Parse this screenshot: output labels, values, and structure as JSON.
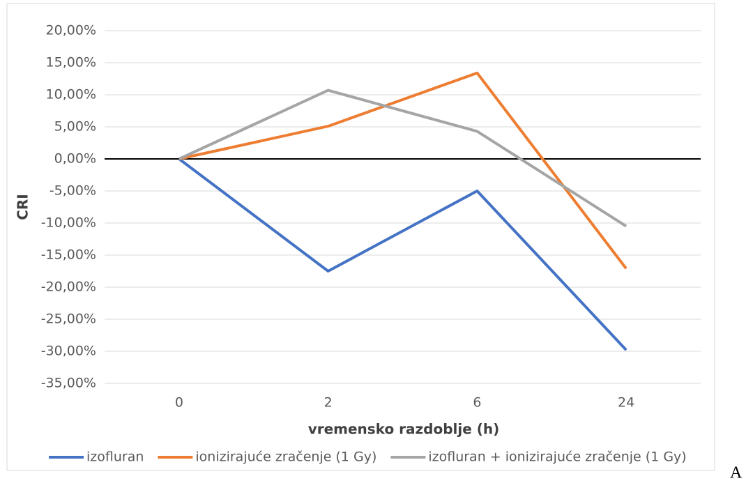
{
  "chart_data": {
    "type": "line",
    "categories": [
      "0",
      "2",
      "6",
      "24"
    ],
    "xlabel": "vremensko razdoblje (h)",
    "ylabel": "CRI",
    "series": [
      {
        "name": "izofluran",
        "color": "#4472c4",
        "values": [
          0,
          -17.5,
          -5,
          -29.8
        ]
      },
      {
        "name": "ionizirajuće zračenje (1 Gy)",
        "color": "#ed7d31",
        "values": [
          0,
          5.1,
          13.4,
          -17.1
        ]
      },
      {
        "name": "izofluran + ionizirajuće zračenje (1 Gy)",
        "color": "#a5a5a5",
        "values": [
          0,
          10.7,
          4.3,
          -10.5
        ]
      }
    ],
    "ylim": [
      -35,
      20
    ],
    "yticks": [
      {
        "value": -35,
        "label": "-35,00%"
      },
      {
        "value": -30,
        "label": "-30,00%"
      },
      {
        "value": -25,
        "label": "-25,00%"
      },
      {
        "value": -20,
        "label": "-20,00%"
      },
      {
        "value": -15,
        "label": "-15,00%"
      },
      {
        "value": -10,
        "label": "-10,00%"
      },
      {
        "value": -5,
        "label": "-5,00%"
      },
      {
        "value": 0,
        "label": "0,00%"
      },
      {
        "value": 5,
        "label": "5,00%"
      },
      {
        "value": 10,
        "label": "10,00%"
      },
      {
        "value": 15,
        "label": "15,00%"
      },
      {
        "value": 20,
        "label": "20,00%"
      }
    ],
    "grid": true,
    "legend": "bottom",
    "annotation": "A"
  }
}
